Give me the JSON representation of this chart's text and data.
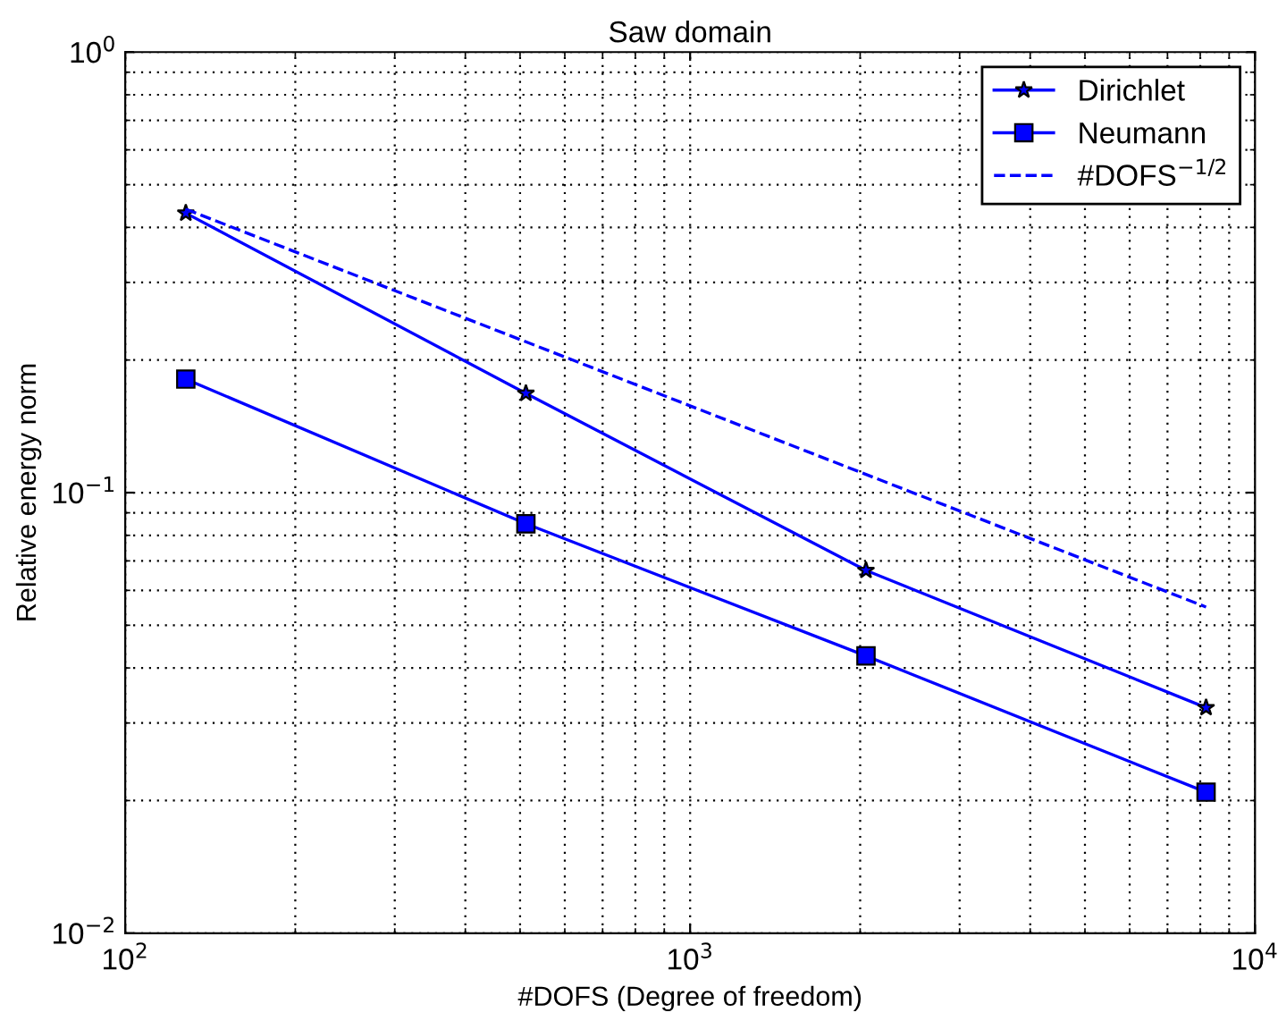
{
  "chart_data": {
    "type": "line",
    "title": "Saw domain",
    "xlabel": "#DOFS (Degree of freedom)",
    "ylabel": "Relative energy norm",
    "x": [
      128,
      512,
      2048,
      8192
    ],
    "series": [
      {
        "name": "Dirichlet",
        "color": "#0000ff",
        "values": [
          0.431,
          0.168,
          0.0666,
          0.0325
        ],
        "marker": "star",
        "line_style": "solid"
      },
      {
        "name": "Neumann",
        "color": "#0000ff",
        "values": [
          0.181,
          0.085,
          0.0426,
          0.0209
        ],
        "marker": "square",
        "line_style": "solid"
      },
      {
        "name": "#DOFS$^{−1/2}$",
        "color": "#0000ff",
        "values": [
          0.44,
          0.22,
          0.11,
          0.055
        ],
        "marker": "none",
        "line_style": "dashed"
      }
    ],
    "log": "xy",
    "xlim": [
      100,
      10000
    ],
    "ylim": [
      0.01,
      1
    ],
    "xticks": [
      {
        "value": 100,
        "label": "10$^{2}$"
      },
      {
        "value": 1000,
        "label": "10$^{3}$"
      },
      {
        "value": 10000,
        "label": "10$^{4}$"
      }
    ],
    "yticks": [
      {
        "value": 0.01,
        "label": "10$^{−2}$"
      },
      {
        "value": 0.1,
        "label": "10$^{−1}$"
      },
      {
        "value": 1,
        "label": "10$^{0}$"
      }
    ],
    "grid": true,
    "legend": "top right"
  }
}
